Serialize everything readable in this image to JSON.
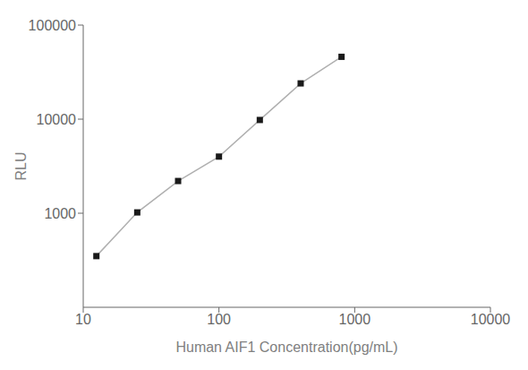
{
  "chart_data": {
    "type": "line",
    "x": [
      12.5,
      25,
      50,
      100,
      200,
      400,
      800
    ],
    "series": [
      {
        "type": "line",
        "color": "#b0b0b0",
        "values": [
          350,
          1020,
          2200,
          4000,
          9800,
          24000,
          46000
        ]
      },
      {
        "type": "scatter",
        "color": "#1a1a1a",
        "marker": "square",
        "values": [
          350,
          1020,
          2200,
          4000,
          9800,
          24000,
          46000
        ]
      }
    ],
    "xlabel": "Human AIF1 Concentration(pg/mL)",
    "ylabel": "RLU",
    "xlim": [
      10,
      10000
    ],
    "ylim": [
      100,
      100000
    ],
    "xticks": [
      10,
      100,
      1000,
      10000
    ],
    "yticks": [
      1000,
      10000,
      100000
    ],
    "log": true
  }
}
